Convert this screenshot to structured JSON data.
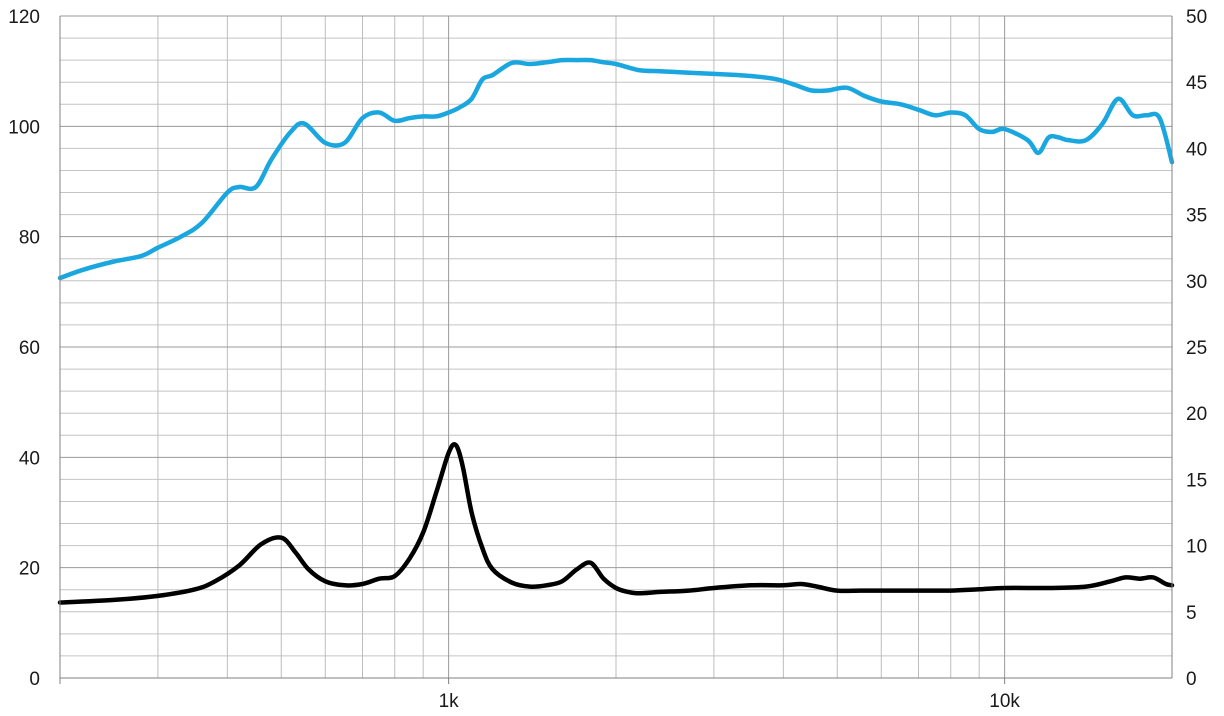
{
  "chart_data": {
    "type": "line",
    "title": "",
    "xlabel": "",
    "ylabel": "",
    "y2label": "",
    "x_scale": "log",
    "xlim": [
      200,
      20000
    ],
    "ylim": [
      0,
      120
    ],
    "y2lim": [
      0,
      50
    ],
    "grid": true,
    "legend": "none",
    "x_tick_labels": [
      {
        "value": 1000,
        "label": "1k"
      },
      {
        "value": 10000,
        "label": "10k"
      }
    ],
    "y_tick_labels": [
      "0",
      "20",
      "40",
      "60",
      "80",
      "100",
      "120"
    ],
    "y2_tick_labels": [
      "0",
      "5",
      "10",
      "15",
      "20",
      "25",
      "30",
      "35",
      "40",
      "45",
      "50"
    ],
    "series": [
      {
        "axis": "left",
        "color": "#1aa7e0",
        "x": [
          200,
          220,
          250,
          280,
          300,
          330,
          360,
          400,
          420,
          450,
          480,
          520,
          550,
          600,
          650,
          700,
          750,
          800,
          850,
          900,
          950,
          1000,
          1050,
          1100,
          1150,
          1200,
          1300,
          1400,
          1500,
          1600,
          1700,
          1800,
          1900,
          2000,
          2200,
          2400,
          2600,
          3000,
          3300,
          3600,
          3900,
          4200,
          4500,
          4800,
          5200,
          5600,
          6000,
          6500,
          7000,
          7500,
          8000,
          8500,
          9000,
          9500,
          10000,
          11000,
          11500,
          12000,
          12500,
          13000,
          14000,
          15000,
          16000,
          17000,
          18000,
          19000,
          20000
        ],
        "y": [
          72.5,
          74,
          75.5,
          76.5,
          78,
          80,
          82.5,
          88,
          89,
          89,
          94,
          99,
          100.5,
          97,
          97,
          101.5,
          102.5,
          101,
          101.5,
          101.8,
          101.8,
          102.5,
          103.5,
          105,
          108.5,
          109.3,
          111.5,
          111.3,
          111.6,
          112,
          112,
          112,
          111.6,
          111.3,
          110.2,
          110,
          109.8,
          109.5,
          109.3,
          109,
          108.5,
          107.5,
          106.5,
          106.5,
          107,
          105.5,
          104.5,
          104,
          103,
          102,
          102.5,
          102,
          99.5,
          99,
          99.5,
          97.5,
          95.2,
          98,
          98,
          97.5,
          97.5,
          100.5,
          105,
          102,
          102,
          101.5,
          93.5
        ]
      },
      {
        "axis": "right",
        "color": "#000000",
        "x": [
          200,
          250,
          300,
          350,
          380,
          420,
          460,
          500,
          530,
          560,
          600,
          650,
          700,
          750,
          800,
          850,
          900,
          950,
          1000,
          1030,
          1060,
          1100,
          1150,
          1200,
          1300,
          1400,
          1500,
          1600,
          1700,
          1800,
          1900,
          2000,
          2100,
          2200,
          2400,
          2700,
          3000,
          3500,
          4000,
          4300,
          4600,
          5000,
          5500,
          6000,
          7000,
          8000,
          9000,
          10000,
          12000,
          14000,
          15500,
          16500,
          17500,
          18500,
          19500,
          20000
        ],
        "y": [
          5.7,
          5.9,
          6.2,
          6.7,
          7.3,
          8.5,
          10.1,
          10.6,
          9.5,
          8.2,
          7.3,
          7.0,
          7.1,
          7.5,
          7.7,
          9.0,
          11.0,
          14.0,
          17.0,
          17.6,
          16.0,
          12.5,
          9.8,
          8.2,
          7.2,
          6.9,
          7.0,
          7.3,
          8.2,
          8.7,
          7.5,
          6.8,
          6.5,
          6.4,
          6.5,
          6.6,
          6.8,
          7.0,
          7.0,
          7.1,
          6.9,
          6.6,
          6.6,
          6.6,
          6.6,
          6.6,
          6.7,
          6.8,
          6.8,
          6.9,
          7.3,
          7.6,
          7.5,
          7.6,
          7.1,
          7.0
        ]
      }
    ]
  }
}
